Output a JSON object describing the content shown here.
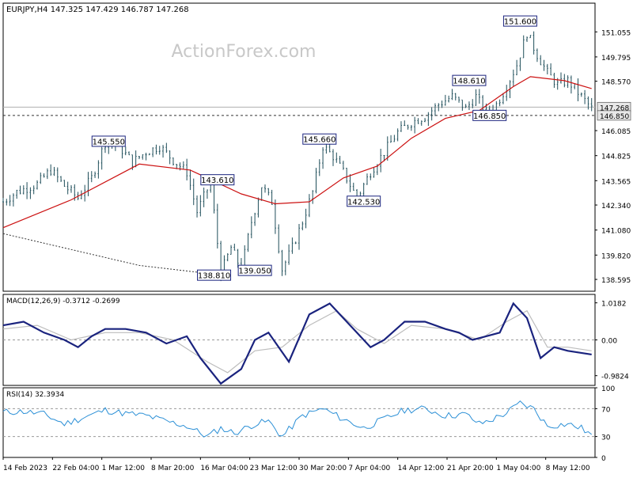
{
  "header": {
    "symbol_line": "EURJPY,H4  147.325 147.429 146.787 147.268",
    "watermark": "ActionForex.com"
  },
  "colors": {
    "bars": "#1f4e5a",
    "ma_short": "#cc1111",
    "ma_long": "#333333",
    "macd_line": "#1a237e",
    "macd_signal": "#bdbdbd",
    "rsi_line": "#2a8fd6",
    "grid_level": "#999999",
    "label_border": "#1a237e"
  },
  "chart_data": [
    {
      "type": "candlestick",
      "name": "price",
      "ylim": [
        138.0,
        152.5
      ],
      "y_ticks": [
        151.055,
        149.795,
        148.57,
        147.268,
        146.85,
        146.085,
        144.825,
        143.565,
        142.34,
        141.08,
        139.82,
        138.595
      ],
      "y_tick_labels": [
        "151.055",
        "149.795",
        "148.570",
        "147.268",
        "146.850",
        "146.085",
        "144.825",
        "143.565",
        "142.340",
        "141.080",
        "139.820",
        "138.595"
      ],
      "current_price": 147.268,
      "reference_level": 146.85,
      "x_tick_labels": [
        "14 Feb 2023",
        "22 Feb 04:00",
        "1 Mar 12:00",
        "8 Mar 20:00",
        "16 Mar 04:00",
        "23 Mar 12:00",
        "30 Mar 20:00",
        "7 Apr 04:00",
        "14 Apr 12:00",
        "21 Apr 20:00",
        "1 May 04:00",
        "8 May 12:00"
      ],
      "close_path": [
        [
          0,
          142.5
        ],
        [
          4,
          143.0
        ],
        [
          10,
          143.4
        ],
        [
          14,
          144.1
        ],
        [
          18,
          143.3
        ],
        [
          22,
          142.7
        ],
        [
          26,
          143.7
        ],
        [
          30,
          145.5
        ],
        [
          34,
          145.3
        ],
        [
          38,
          144.5
        ],
        [
          42,
          145.0
        ],
        [
          46,
          145.3
        ],
        [
          50,
          144.6
        ],
        [
          54,
          144.0
        ],
        [
          57,
          142.0
        ],
        [
          61,
          143.5
        ],
        [
          64,
          138.9
        ],
        [
          67,
          140.2
        ],
        [
          70,
          139.1
        ],
        [
          73,
          141.5
        ],
        [
          76,
          143.3
        ],
        [
          79,
          142.5
        ],
        [
          82,
          139.1
        ],
        [
          85,
          140.2
        ],
        [
          88,
          141.5
        ],
        [
          91,
          143.0
        ],
        [
          94,
          145.3
        ],
        [
          97,
          144.8
        ],
        [
          100,
          144.0
        ],
        [
          104,
          142.7
        ],
        [
          108,
          144.0
        ],
        [
          112,
          145.0
        ],
        [
          116,
          146.0
        ],
        [
          120,
          146.5
        ],
        [
          124,
          146.8
        ],
        [
          128,
          147.4
        ],
        [
          132,
          147.8
        ],
        [
          136,
          147.2
        ],
        [
          139,
          147.8
        ],
        [
          142,
          147.0
        ],
        [
          145,
          147.4
        ],
        [
          148,
          148.3
        ],
        [
          151,
          149.4
        ],
        [
          154,
          151.0
        ],
        [
          157,
          149.9
        ],
        [
          160,
          149.0
        ],
        [
          163,
          148.4
        ],
        [
          166,
          148.6
        ],
        [
          169,
          148.0
        ],
        [
          173,
          147.2
        ]
      ],
      "annotations": [
        {
          "text": "145.550",
          "x": 31,
          "value": 145.55
        },
        {
          "text": "143.610",
          "x": 63,
          "value": 143.61
        },
        {
          "text": "138.810",
          "x": 62,
          "value": 138.81
        },
        {
          "text": "139.050",
          "x": 74,
          "value": 139.05
        },
        {
          "text": "145.660",
          "x": 93,
          "value": 145.66
        },
        {
          "text": "142.530",
          "x": 106,
          "value": 142.53
        },
        {
          "text": "148.610",
          "x": 137,
          "value": 148.61
        },
        {
          "text": "146.850",
          "x": 143,
          "value": 146.85
        },
        {
          "text": "151.600",
          "x": 152,
          "value": 151.6
        }
      ],
      "moving_averages": [
        {
          "path": [
            [
              0,
              141.2
            ],
            [
              20,
              142.6
            ],
            [
              40,
              144.4
            ],
            [
              55,
              144.1
            ],
            [
              70,
              142.9
            ],
            [
              80,
              142.4
            ],
            [
              90,
              142.5
            ],
            [
              100,
              143.7
            ],
            [
              110,
              144.3
            ],
            [
              120,
              145.7
            ],
            [
              130,
              146.7
            ],
            [
              140,
              147.1
            ],
            [
              150,
              148.3
            ],
            [
              155,
              148.8
            ],
            [
              165,
              148.6
            ],
            [
              173,
              148.2
            ]
          ]
        },
        {
          "path": [
            [
              0,
              140.9
            ],
            [
              20,
              140.1
            ],
            [
              40,
              139.3
            ],
            [
              60,
              138.9
            ]
          ]
        }
      ]
    },
    {
      "type": "line",
      "name": "MACD(12,26,9)",
      "label": "MACD(12,26,9) -0.3712 -0.2699",
      "ylim": [
        -1.25,
        1.25
      ],
      "y_tick_labels": [
        "1.0182",
        "0.00",
        "-0.9824"
      ],
      "y_ticks": [
        1.0182,
        0.0,
        -0.9824
      ],
      "series": [
        {
          "path": [
            [
              0,
              0.4
            ],
            [
              6,
              0.5
            ],
            [
              12,
              0.2
            ],
            [
              18,
              0.0
            ],
            [
              22,
              -0.2
            ],
            [
              26,
              0.1
            ],
            [
              30,
              0.3
            ],
            [
              36,
              0.3
            ],
            [
              42,
              0.2
            ],
            [
              48,
              -0.1
            ],
            [
              54,
              0.1
            ],
            [
              58,
              -0.5
            ],
            [
              64,
              -1.2
            ],
            [
              70,
              -0.8
            ],
            [
              74,
              0.0
            ],
            [
              78,
              0.2
            ],
            [
              84,
              -0.6
            ],
            [
              90,
              0.7
            ],
            [
              96,
              1.0
            ],
            [
              102,
              0.4
            ],
            [
              108,
              -0.2
            ],
            [
              112,
              0.0
            ],
            [
              118,
              0.5
            ],
            [
              124,
              0.5
            ],
            [
              130,
              0.3
            ],
            [
              134,
              0.2
            ],
            [
              138,
              0.0
            ],
            [
              142,
              0.1
            ],
            [
              146,
              0.2
            ],
            [
              150,
              1.0
            ],
            [
              154,
              0.6
            ],
            [
              158,
              -0.5
            ],
            [
              162,
              -0.2
            ],
            [
              166,
              -0.3
            ],
            [
              173,
              -0.4
            ]
          ]
        },
        {
          "path": [
            [
              0,
              0.3
            ],
            [
              10,
              0.4
            ],
            [
              20,
              0.0
            ],
            [
              30,
              0.2
            ],
            [
              40,
              0.2
            ],
            [
              50,
              0.0
            ],
            [
              60,
              -0.6
            ],
            [
              66,
              -0.9
            ],
            [
              74,
              -0.3
            ],
            [
              82,
              -0.2
            ],
            [
              90,
              0.4
            ],
            [
              98,
              0.8
            ],
            [
              104,
              0.3
            ],
            [
              112,
              -0.1
            ],
            [
              120,
              0.4
            ],
            [
              130,
              0.3
            ],
            [
              140,
              0.0
            ],
            [
              148,
              0.5
            ],
            [
              154,
              0.8
            ],
            [
              160,
              -0.2
            ],
            [
              166,
              -0.2
            ],
            [
              173,
              -0.3
            ]
          ]
        }
      ]
    },
    {
      "type": "line",
      "name": "RSI(14)",
      "label": "RSI(14) 32.3934",
      "ylim": [
        0,
        100
      ],
      "y_tick_labels": [
        "100",
        "70",
        "30",
        "0"
      ],
      "y_ticks": [
        100,
        70,
        30,
        0
      ],
      "series": [
        {
          "path": [
            [
              0,
              65
            ],
            [
              6,
              66
            ],
            [
              12,
              62
            ],
            [
              18,
              48
            ],
            [
              24,
              58
            ],
            [
              30,
              68
            ],
            [
              36,
              63
            ],
            [
              42,
              60
            ],
            [
              48,
              52
            ],
            [
              54,
              45
            ],
            [
              60,
              30
            ],
            [
              64,
              42
            ],
            [
              68,
              35
            ],
            [
              74,
              48
            ],
            [
              78,
              52
            ],
            [
              82,
              30
            ],
            [
              88,
              60
            ],
            [
              94,
              70
            ],
            [
              100,
              55
            ],
            [
              106,
              42
            ],
            [
              112,
              55
            ],
            [
              118,
              68
            ],
            [
              124,
              70
            ],
            [
              130,
              60
            ],
            [
              136,
              62
            ],
            [
              140,
              48
            ],
            [
              144,
              55
            ],
            [
              148,
              64
            ],
            [
              152,
              78
            ],
            [
              156,
              70
            ],
            [
              160,
              45
            ],
            [
              166,
              48
            ],
            [
              170,
              42
            ],
            [
              173,
              32
            ]
          ]
        }
      ]
    }
  ]
}
